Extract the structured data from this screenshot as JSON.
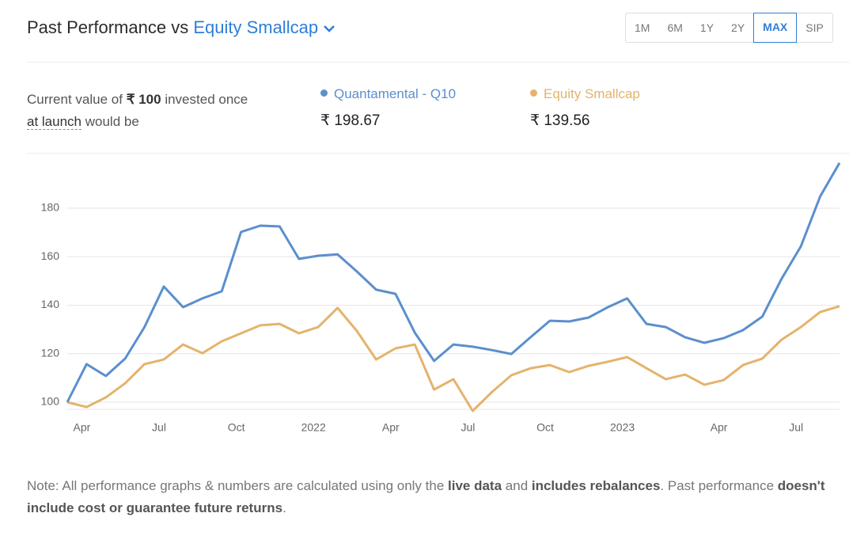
{
  "header": {
    "title": "Past Performance vs",
    "benchmark": "Equity Smallcap",
    "periods": [
      "1M",
      "6M",
      "1Y",
      "2Y",
      "MAX",
      "SIP"
    ],
    "selected": 4
  },
  "summary": {
    "text_1": "Current value of",
    "amount": "₹ 100",
    "text_2": "invested once",
    "link": "at launch",
    "text_3": "would be"
  },
  "chart_data": {
    "type": "line",
    "categories": [
      null,
      "Apr",
      null,
      null,
      null,
      "Jul",
      null,
      null,
      null,
      "Oct",
      null,
      null,
      null,
      "2022",
      null,
      null,
      null,
      "Apr",
      null,
      null,
      null,
      "Jul",
      null,
      null,
      null,
      "Oct",
      null,
      null,
      null,
      "2023",
      null,
      null,
      null,
      null,
      "Apr",
      null,
      null,
      null,
      "Jul",
      null,
      null
    ],
    "series": [
      {
        "name": "Quantamental - Q10",
        "color": "#5b8fcd",
        "current_value": "₹ 198.67",
        "values": [
          100,
          115.7,
          110.8,
          118,
          131,
          147.7,
          139.2,
          142.8,
          145.7,
          170.2,
          172.8,
          172.5,
          159.1,
          160.4,
          161,
          153.9,
          146.4,
          144.7,
          128.7,
          117,
          123.8,
          122.9,
          121.5,
          119.9,
          126.8,
          133.6,
          133.3,
          134.9,
          139.2,
          142.8,
          132.3,
          131,
          126.8,
          124.5,
          126.4,
          129.7,
          135.3,
          150.9,
          164.3,
          184.9,
          198.67
        ]
      },
      {
        "name": "Equity Smallcap",
        "color": "#e4b36c",
        "current_value": "₹ 139.56",
        "values": [
          100,
          98,
          102,
          107.8,
          115.7,
          117.6,
          123.8,
          120.2,
          125.1,
          128.4,
          131.7,
          132.3,
          128.4,
          131,
          138.9,
          129.4,
          117.6,
          122.2,
          123.8,
          105.2,
          109.5,
          96.4,
          104.2,
          111.1,
          114,
          115.3,
          112.4,
          115,
          116.7,
          118.6,
          114,
          109.5,
          111.4,
          107.2,
          109.1,
          115.3,
          118,
          125.8,
          131,
          137.2,
          139.56
        ]
      }
    ],
    "ylim": [
      96,
      200
    ],
    "yticks": [
      100,
      120,
      140,
      160,
      180
    ],
    "grid": true
  },
  "note": {
    "parts": [
      "Note: All performance graphs & numbers are calculated using only the ",
      "live data",
      " and ",
      "includes rebalances",
      ". Past performance ",
      "doesn't include cost or guarantee future returns",
      "."
    ]
  }
}
